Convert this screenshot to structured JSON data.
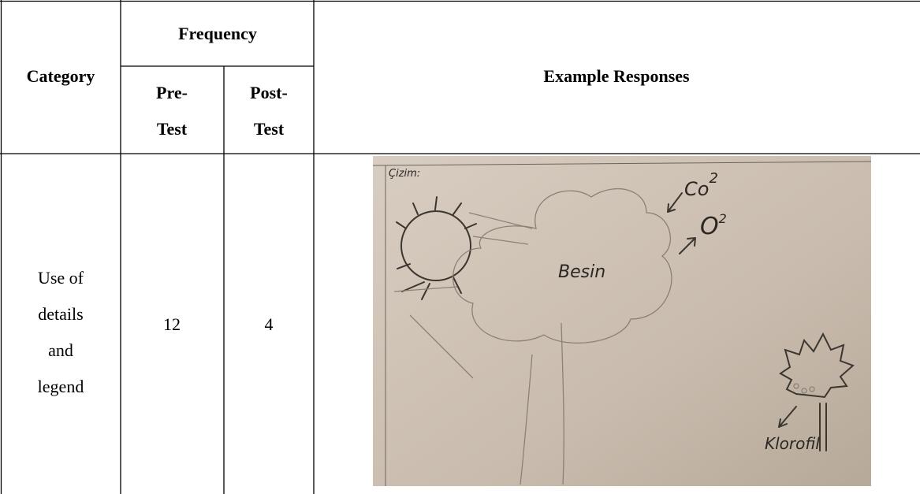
{
  "table": {
    "header": {
      "category": "Category",
      "frequency": "Frequency",
      "pre_test": [
        "Pre-",
        "Test"
      ],
      "post_test": [
        "Post-",
        "Test"
      ],
      "examples": "Example Responses"
    },
    "rows": [
      {
        "category": [
          "Use of",
          "details",
          "and",
          "legend"
        ],
        "pre": "12",
        "post": "4"
      }
    ]
  },
  "image": {
    "caption": "Çizim:",
    "labels": {
      "food": "Besin",
      "co": "Co",
      "co_sup": "2",
      "o": "O",
      "o_sup": "2",
      "chlorophyll": "Klorofil"
    }
  }
}
